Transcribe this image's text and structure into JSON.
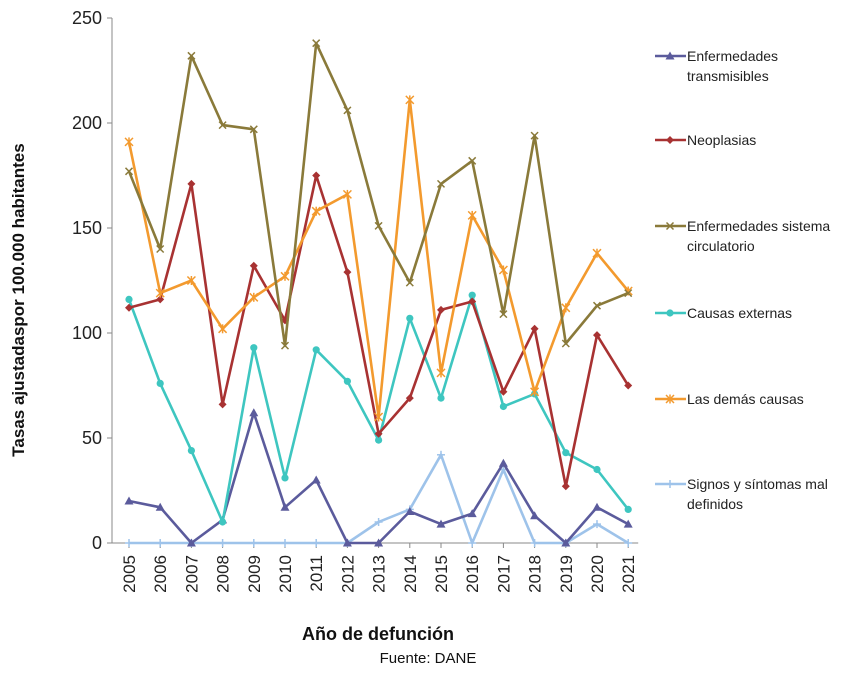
{
  "chart_data": {
    "type": "line",
    "title": "",
    "xlabel": "Año de defunción",
    "ylabel": "Tasas ajustadaspor 100.000 habitantes",
    "ylim": [
      0,
      250
    ],
    "yticks": [
      "0",
      "50",
      "100",
      "150",
      "200",
      "250"
    ],
    "grid": false,
    "legend_position": "right",
    "categories": [
      "2005",
      "2006",
      "2007",
      "2008",
      "2009",
      "2010",
      "2011",
      "2012",
      "2013",
      "2014",
      "2015",
      "2016",
      "2017",
      "2018",
      "2019",
      "2020",
      "2021"
    ],
    "series": [
      {
        "name": "Enfermedades transmisibles",
        "color": "#5b5b9c",
        "marker": "triangle",
        "values": [
          20,
          17,
          0,
          11,
          62,
          17,
          30,
          0,
          0,
          15,
          9,
          14,
          38,
          13,
          0,
          17,
          9
        ]
      },
      {
        "name": "Neoplasias",
        "color": "#a83232",
        "marker": "diamond",
        "values": [
          112,
          116,
          171,
          66,
          132,
          106,
          175,
          129,
          52,
          69,
          111,
          115,
          72,
          102,
          27,
          99,
          75
        ]
      },
      {
        "name": "Enfermedades sistema circulatorio",
        "color": "#8a7a3a",
        "marker": "x",
        "values": [
          177,
          140,
          232,
          199,
          197,
          94,
          238,
          206,
          151,
          124,
          171,
          182,
          109,
          194,
          95,
          113,
          119
        ]
      },
      {
        "name": "Causas externas",
        "color": "#3ec6c0",
        "marker": "circle",
        "values": [
          116,
          76,
          44,
          10,
          93,
          31,
          92,
          77,
          49,
          107,
          69,
          118,
          65,
          71,
          43,
          35,
          16
        ]
      },
      {
        "name": "Las demás causas",
        "color": "#f39a2e",
        "marker": "star",
        "values": [
          191,
          119,
          125,
          102,
          117,
          127,
          158,
          166,
          60,
          211,
          81,
          156,
          130,
          72,
          112,
          138,
          120
        ]
      },
      {
        "name": "Signos y síntomas mal definidos",
        "color": "#9ec3ea",
        "marker": "plus",
        "values": [
          0,
          0,
          0,
          0,
          0,
          0,
          0,
          0,
          10,
          16,
          42,
          0,
          35,
          0,
          0,
          9,
          0
        ]
      }
    ]
  },
  "footer": {
    "source": "Fuente: DANE"
  }
}
